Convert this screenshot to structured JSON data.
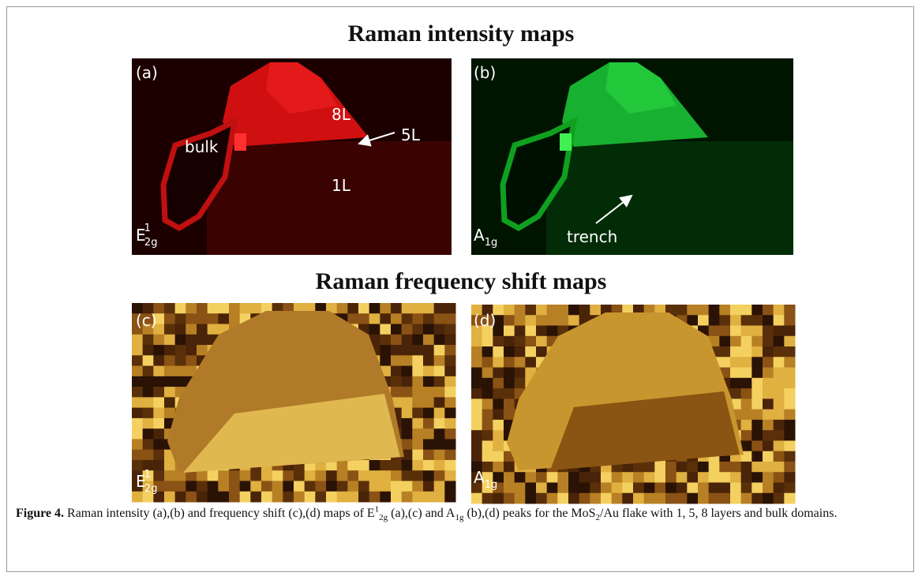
{
  "titles": [
    "Raman intensity maps",
    "Raman frequency shift maps"
  ],
  "panels": [
    {
      "label": "(a)",
      "peak": {
        "base": "E",
        "sup": "1",
        "sub": "2g"
      },
      "annotations": [
        "bulk",
        "8L",
        "5L",
        "1L"
      ]
    },
    {
      "label": "(b)",
      "peak": {
        "base": "A",
        "sub": "1g"
      },
      "annotations": [
        "trench"
      ]
    },
    {
      "label": "(c)",
      "peak": {
        "base": "E",
        "sup": "1",
        "sub": "2g"
      }
    },
    {
      "label": "(d)",
      "peak": {
        "base": "A",
        "sub": "1g"
      }
    }
  ],
  "caption": {
    "label": "Figure 4.",
    "runs": [
      {
        "text": " Raman intensity (a),(b) and frequency shift (c),(d) maps of E",
        "style": "normal"
      },
      {
        "text": "1",
        "style": "sup"
      },
      {
        "text": "2g",
        "style": "sub"
      },
      {
        "text": " (a),(c) and A",
        "style": "normal"
      },
      {
        "text": "1g",
        "style": "sub"
      },
      {
        "text": " (b),(d) peaks for the MoS",
        "style": "normal"
      },
      {
        "text": "2",
        "style": "sub"
      },
      {
        "text": "/Au flake with 1, 5, 8 layers and bulk domains.",
        "style": "normal"
      }
    ]
  }
}
